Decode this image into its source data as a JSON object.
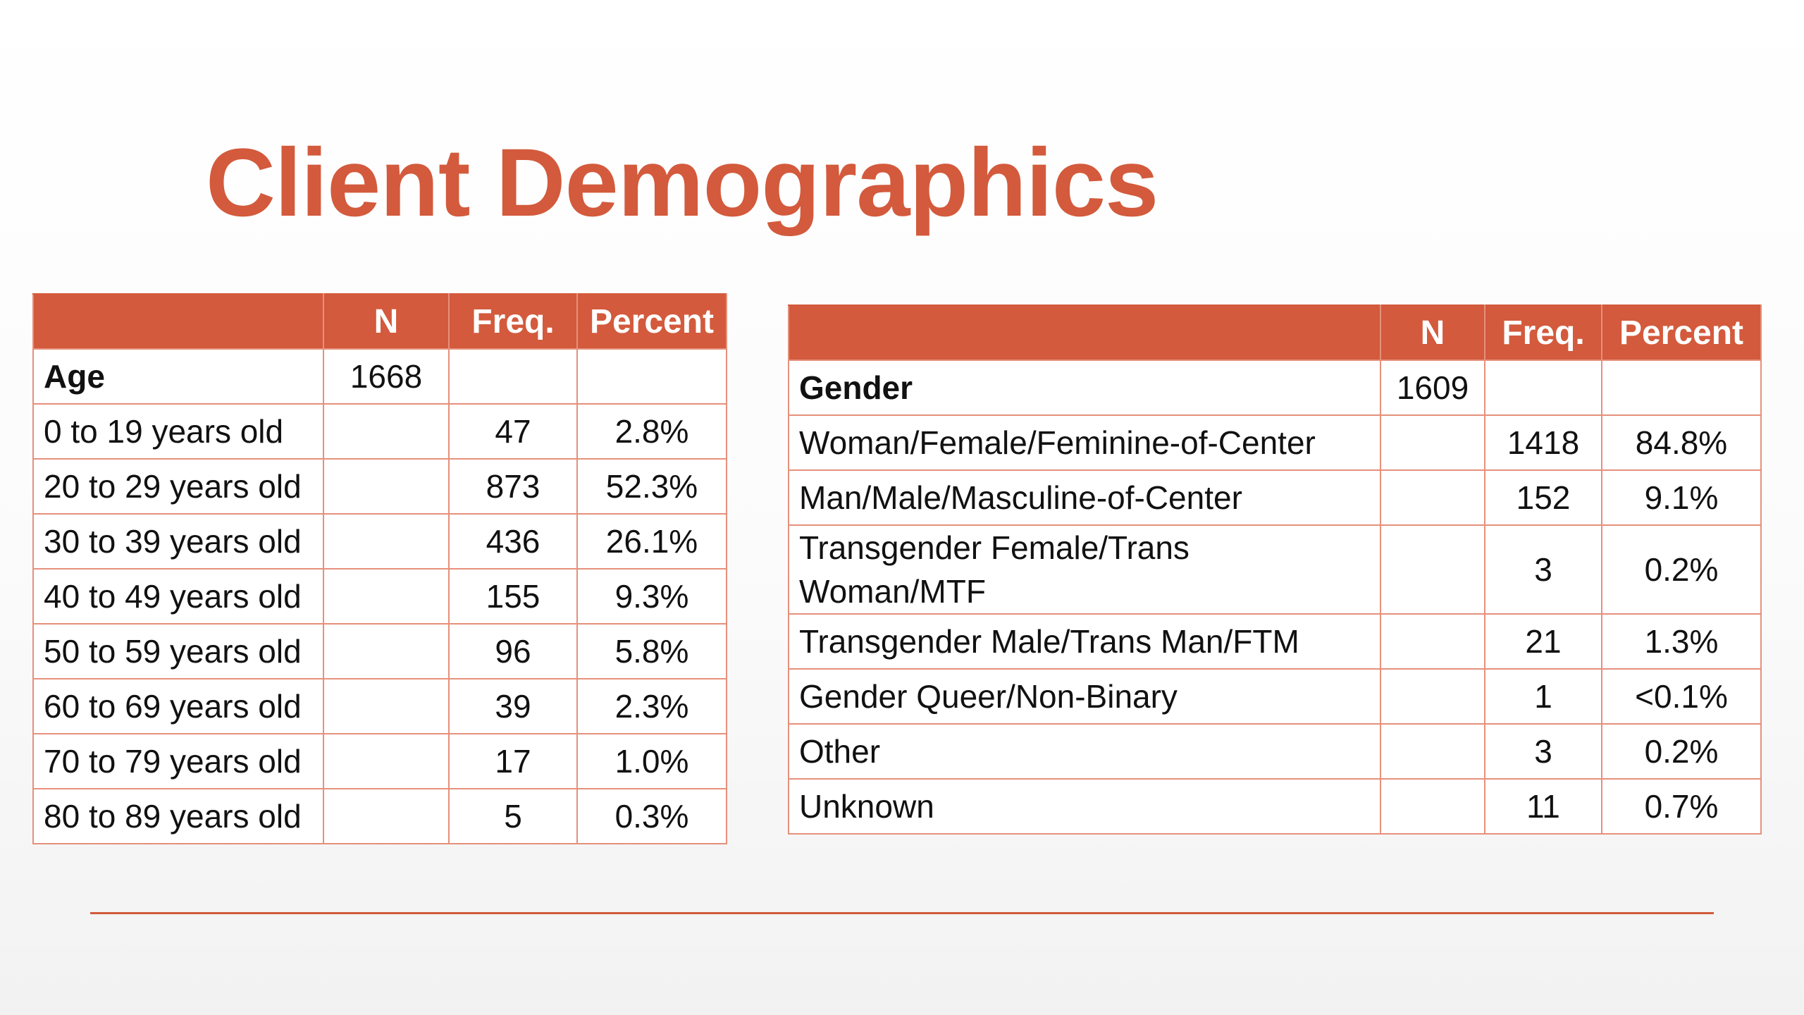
{
  "title": "Client Demographics",
  "colors": {
    "accent": "#d35a3c",
    "grid": "#e6907b",
    "text": "#111111"
  },
  "age_table": {
    "headers": [
      "",
      "N",
      "Freq.",
      "Percent"
    ],
    "group": {
      "label": "Age",
      "n": "1668"
    },
    "rows": [
      {
        "label": "0 to 19 years old",
        "freq": "47",
        "percent": "2.8%"
      },
      {
        "label": "20 to 29 years old",
        "freq": "873",
        "percent": "52.3%"
      },
      {
        "label": "30 to 39 years old",
        "freq": "436",
        "percent": "26.1%"
      },
      {
        "label": "40 to 49 years old",
        "freq": "155",
        "percent": "9.3%"
      },
      {
        "label": "50 to 59 years old",
        "freq": "96",
        "percent": "5.8%"
      },
      {
        "label": "60 to 69 years old",
        "freq": "39",
        "percent": "2.3%"
      },
      {
        "label": "70 to 79 years old",
        "freq": "17",
        "percent": "1.0%"
      },
      {
        "label": "80 to 89 years old",
        "freq": "5",
        "percent": "0.3%"
      }
    ]
  },
  "gender_table": {
    "headers": [
      "",
      "N",
      "Freq.",
      "Percent"
    ],
    "group": {
      "label": "Gender",
      "n": "1609"
    },
    "rows": [
      {
        "label": "Woman/Female/Feminine-of-Center",
        "freq": "1418",
        "percent": "84.8%"
      },
      {
        "label": "Man/Male/Masculine-of-Center",
        "freq": "152",
        "percent": "9.1%"
      },
      {
        "label": "Transgender Female/Trans Woman/MTF",
        "freq": "3",
        "percent": "0.2%"
      },
      {
        "label": "Transgender Male/Trans Man/FTM",
        "freq": "21",
        "percent": "1.3%"
      },
      {
        "label": "Gender Queer/Non-Binary",
        "freq": "1",
        "percent": "<0.1%"
      },
      {
        "label": "Other",
        "freq": "3",
        "percent": "0.2%"
      },
      {
        "label": "Unknown",
        "freq": "11",
        "percent": "0.7%"
      }
    ]
  }
}
